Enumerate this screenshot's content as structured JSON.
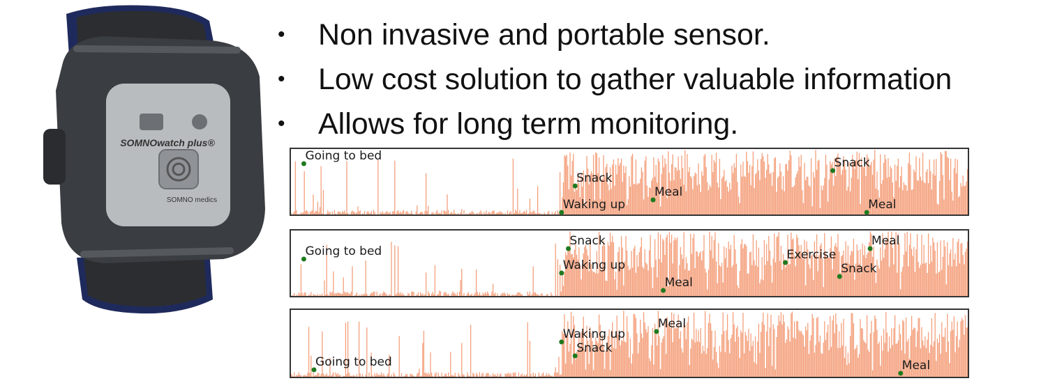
{
  "bullets": [
    "Non invasive and portable sensor.",
    "Low cost solution to gather valuable information",
    "Allows for long term monitoring."
  ],
  "device": {
    "brand_text": "SOMNOwatch plus®",
    "maker_text": "SOMNO medics",
    "strap_color": "#1f2a5c",
    "body_color": "#3a3d41",
    "panel_color": "#b9bcbf"
  },
  "activity_color": "#f4a07c",
  "panels": [
    {
      "events": [
        {
          "label": "Going to bed",
          "t": 0.02
        },
        {
          "label": "Waking up",
          "t": 0.4
        },
        {
          "label": "Snack",
          "t": 0.42
        },
        {
          "label": "Meal",
          "t": 0.535
        },
        {
          "label": "Snack",
          "t": 0.8
        },
        {
          "label": "Meal",
          "t": 0.85
        }
      ]
    },
    {
      "events": [
        {
          "label": "Going to bed",
          "t": 0.02
        },
        {
          "label": "Waking up",
          "t": 0.4
        },
        {
          "label": "Snack",
          "t": 0.41
        },
        {
          "label": "Meal",
          "t": 0.55
        },
        {
          "label": "Exercise",
          "t": 0.73
        },
        {
          "label": "Snack",
          "t": 0.81
        },
        {
          "label": "Meal",
          "t": 0.855
        }
      ]
    },
    {
      "events": [
        {
          "label": "Going to bed",
          "t": 0.035
        },
        {
          "label": "Waking up",
          "t": 0.4
        },
        {
          "label": "Snack",
          "t": 0.42
        },
        {
          "label": "Meal",
          "t": 0.54
        },
        {
          "label": "Meal",
          "t": 0.9
        }
      ]
    }
  ]
}
